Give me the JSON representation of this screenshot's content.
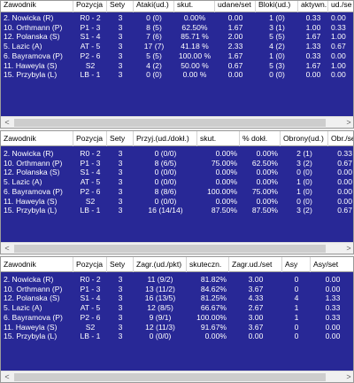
{
  "attack": {
    "headers": [
      "Zawodnik",
      "Pozycja",
      "Sety",
      "Ataki(ud.)",
      "skut.",
      "udane/set",
      "Bloki(ud.)",
      "aktywn.",
      "ud./se"
    ],
    "rows": [
      [
        "2. Nowicka (R)",
        "R0 - 2",
        "3",
        "0 (0)",
        "0.00%",
        "0.00",
        "1 (0)",
        "0.33",
        "0.00"
      ],
      [
        "10. Orthmann (P)",
        "P1 - 3",
        "3",
        "8 (5)",
        "62.50%",
        "1.67",
        "3 (1)",
        "1.00",
        "0.33"
      ],
      [
        "12. Polanska (S)",
        "S1 - 4",
        "3",
        "7 (6)",
        "85.71 %",
        "2.00",
        "5 (5)",
        "1.67",
        "1.00"
      ],
      [
        "5. Lazic (A)",
        "AT - 5",
        "3",
        "17 (7)",
        "41.18 %",
        "2.33",
        "4 (2)",
        "1.33",
        "0.67"
      ],
      [
        "6. Bayramova (P)",
        "P2 - 6",
        "3",
        "5 (5)",
        "100.00 %",
        "1.67",
        "1 (0)",
        "0.33",
        "0.00"
      ],
      [
        "11. Haweyla (S)",
        "S2",
        "3",
        "4 (2)",
        "50.00 %",
        "0.67",
        "5 (3)",
        "1.67",
        "1.00"
      ],
      [
        "15. Przybyla (L)",
        "LB - 1",
        "3",
        "0 (0)",
        "0.00 %",
        "0.00",
        "0 (0)",
        "0.00",
        "0.00"
      ]
    ]
  },
  "receive": {
    "headers": [
      "Zawodnik",
      "Pozycja",
      "Sety",
      "Przyj.(ud./dokł.)",
      "skut.",
      "% dokł.",
      "Obrony(ud.)",
      "Obr./se"
    ],
    "rows": [
      [
        "2. Nowicka (R)",
        "R0 - 2",
        "3",
        "0 (0/0)",
        "0.00%",
        "0.00%",
        "2 (1)",
        "0.33"
      ],
      [
        "10. Orthmann (P)",
        "P1 - 3",
        "3",
        "8 (6/5)",
        "75.00%",
        "62.50%",
        "3 (2)",
        "0.67"
      ],
      [
        "12. Polanska (S)",
        "S1 - 4",
        "3",
        "0 (0/0)",
        "0.00%",
        "0.00%",
        "0 (0)",
        "0.00"
      ],
      [
        "5. Lazic (A)",
        "AT - 5",
        "3",
        "0 (0/0)",
        "0.00%",
        "0.00%",
        "1 (0)",
        "0.00"
      ],
      [
        "6. Bayramova (P)",
        "P2 - 6",
        "3",
        "8 (8/6)",
        "100.00%",
        "75.00%",
        "1 (0)",
        "0.00"
      ],
      [
        "11. Haweyla (S)",
        "S2",
        "3",
        "0 (0/0)",
        "0.00%",
        "0.00%",
        "0 (0)",
        "0.00"
      ],
      [
        "15. Przybyla (L)",
        "LB - 1",
        "3",
        "16 (14/14)",
        "87.50%",
        "87.50%",
        "3 (2)",
        "0.67"
      ]
    ]
  },
  "serve": {
    "headers": [
      "Zawodnik",
      "Pozycja",
      "Sety",
      "Zagr.(ud./pkt)",
      "skuteczn.",
      "Zagr.ud./set",
      "Asy",
      "Asy/set"
    ],
    "rows": [
      [
        "2. Nowicka (R)",
        "R0 - 2",
        "3",
        "11 (9/2)",
        "81.82%",
        "3.00",
        "0",
        "0.00"
      ],
      [
        "10. Orthmann (P)",
        "P1 - 3",
        "3",
        "13 (11/2)",
        "84.62%",
        "3.67",
        "0",
        "0.00"
      ],
      [
        "12. Polanska (S)",
        "S1 - 4",
        "3",
        "16 (13/5)",
        "81.25%",
        "4.33",
        "4",
        "1.33"
      ],
      [
        "5. Lazic (A)",
        "AT - 5",
        "3",
        "12 (8/5)",
        "66.67%",
        "2.67",
        "1",
        "0.33"
      ],
      [
        "6. Bayramova (P)",
        "P2 - 6",
        "3",
        "9 (9/1)",
        "100.00%",
        "3.00",
        "1",
        "0.33"
      ],
      [
        "11. Haweyla (S)",
        "S2",
        "3",
        "12 (11/3)",
        "91.67%",
        "3.67",
        "0",
        "0.00"
      ],
      [
        "15. Przybyla (L)",
        "LB - 1",
        "3",
        "0 (0/0)",
        "0.00%",
        "0.00",
        "0",
        "0.00"
      ]
    ]
  },
  "scroll_arrows": {
    "left": "<",
    "right": ">"
  },
  "colors": {
    "grid_bg": "#282896",
    "row_text": "#ffffff",
    "header_bg": "#ffffff"
  }
}
